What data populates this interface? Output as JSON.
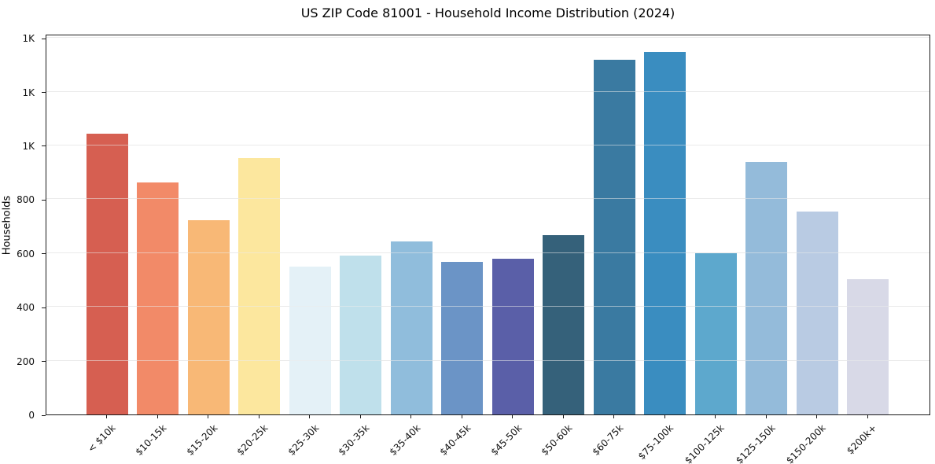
{
  "figure": {
    "title": "US ZIP Code 81001 - Household Income Distribution (2024)",
    "ylabel": "Households"
  },
  "chart_data": {
    "type": "bar",
    "title": "US ZIP Code 81001 - Household Income Distribution (2024)",
    "xlabel": "",
    "ylabel": "Households",
    "categories": [
      "< $10k",
      "$10-15k",
      "$15-20k",
      "$20-25k",
      "$25-30k",
      "$30-35k",
      "$35-40k",
      "$40-45k",
      "$45-50k",
      "$50-60k",
      "$60-75k",
      "$75-100k",
      "$100-125k",
      "$125-150k",
      "$150-200k",
      "$200k+"
    ],
    "values": [
      1043,
      862,
      721,
      952,
      549,
      592,
      642,
      566,
      578,
      668,
      1320,
      1347,
      600,
      938,
      754,
      504
    ],
    "bar_colors": [
      "#d65f51",
      "#f28a68",
      "#f8b876",
      "#fce79e",
      "#e4f1f7",
      "#bfe0eb",
      "#90bddc",
      "#6b94c6",
      "#5a5fa8",
      "#35617a",
      "#3a7aa1",
      "#3a8dc0",
      "#5da8cd",
      "#94bbda",
      "#b9cbe3",
      "#d8d9e7"
    ],
    "ylim": [
      0,
      1415
    ],
    "yticks": {
      "values": [
        0,
        200,
        400,
        600,
        800,
        1000,
        1200,
        1400
      ],
      "labels": [
        "0",
        "200",
        "400",
        "600",
        "800",
        "1K",
        "1K",
        "1K"
      ]
    },
    "grid": "horizontal",
    "grid_color": "#e8e8e8",
    "legend": "none",
    "background": "#ffffff",
    "spine_color": "#1a1a1a"
  }
}
